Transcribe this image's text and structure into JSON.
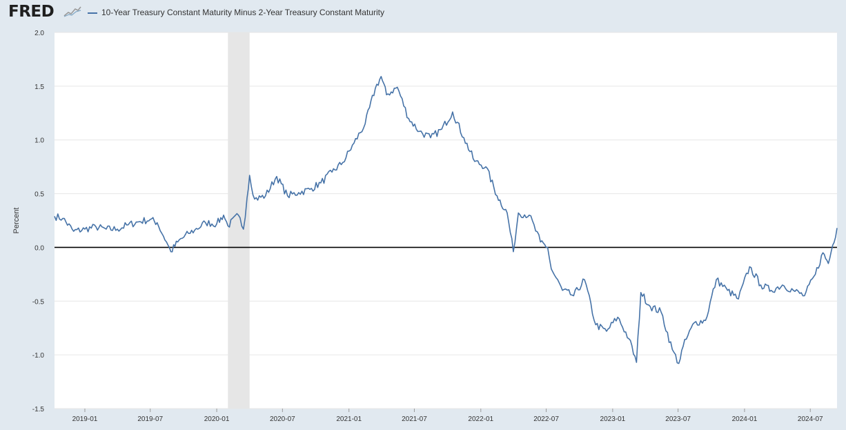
{
  "brand": {
    "logo_text": "FRED",
    "logo_mark": "sparkline-chart-icon"
  },
  "legend": {
    "label": "10-Year Treasury Constant Maturity Minus 2-Year Treasury Constant Maturity",
    "color": "#4572a7"
  },
  "colors": {
    "line": "#4572a7",
    "background": "#e1e9f0",
    "plot": "#ffffff",
    "recession": "#e6e6e6",
    "zero_line": "#000000",
    "grid": "#e6e6e6"
  },
  "chart_data": {
    "type": "line",
    "title": "",
    "xlabel": "",
    "ylabel": "Percent",
    "x_range": [
      "2018-10-09",
      "2024-09-13"
    ],
    "ylim": [
      -1.5,
      2.0
    ],
    "y_ticks": [
      2.0,
      1.5,
      1.0,
      0.5,
      0.0,
      -0.5,
      -1.0,
      -1.5
    ],
    "y_tick_labels": [
      "2.0",
      "1.5",
      "1.0",
      "0.5",
      "0.0",
      "-0.5",
      "-1.0",
      "-1.5"
    ],
    "x_ticks": [
      "2019-01-01",
      "2019-07-01",
      "2020-01-01",
      "2020-07-01",
      "2021-01-01",
      "2021-07-01",
      "2022-01-01",
      "2022-07-01",
      "2023-01-01",
      "2023-07-01",
      "2024-01-01",
      "2024-07-01"
    ],
    "x_tick_labels": [
      "2019-01",
      "2019-07",
      "2020-01",
      "2020-07",
      "2021-01",
      "2021-07",
      "2022-01",
      "2022-07",
      "2023-01",
      "2023-07",
      "2024-01",
      "2024-07"
    ],
    "grid": true,
    "zero_line": true,
    "recession_shading": [
      [
        "2020-02-01",
        "2020-04-01"
      ]
    ],
    "series": [
      {
        "name": "10-Year Treasury Constant Maturity Minus 2-Year Treasury Constant Maturity",
        "points": [
          [
            "2018-10-09",
            0.29
          ],
          [
            "2018-11-01",
            0.27
          ],
          [
            "2018-12-01",
            0.15
          ],
          [
            "2019-01-01",
            0.17
          ],
          [
            "2019-02-01",
            0.19
          ],
          [
            "2019-03-01",
            0.17
          ],
          [
            "2019-04-01",
            0.17
          ],
          [
            "2019-05-01",
            0.21
          ],
          [
            "2019-06-01",
            0.24
          ],
          [
            "2019-07-01",
            0.26
          ],
          [
            "2019-07-20",
            0.23
          ],
          [
            "2019-08-15",
            0.05
          ],
          [
            "2019-08-27",
            -0.04
          ],
          [
            "2019-09-15",
            0.05
          ],
          [
            "2019-10-15",
            0.13
          ],
          [
            "2019-11-01",
            0.16
          ],
          [
            "2019-12-01",
            0.23
          ],
          [
            "2020-01-01",
            0.22
          ],
          [
            "2020-01-20",
            0.3
          ],
          [
            "2020-02-01",
            0.2
          ],
          [
            "2020-03-01",
            0.3
          ],
          [
            "2020-03-15",
            0.17
          ],
          [
            "2020-03-25",
            0.46
          ],
          [
            "2020-04-01",
            0.67
          ],
          [
            "2020-04-15",
            0.45
          ],
          [
            "2020-05-15",
            0.48
          ],
          [
            "2020-06-15",
            0.66
          ],
          [
            "2020-07-15",
            0.48
          ],
          [
            "2020-08-15",
            0.51
          ],
          [
            "2020-09-15",
            0.54
          ],
          [
            "2020-10-15",
            0.6
          ],
          [
            "2020-11-15",
            0.7
          ],
          [
            "2020-12-15",
            0.79
          ],
          [
            "2021-01-15",
            0.97
          ],
          [
            "2021-02-15",
            1.15
          ],
          [
            "2021-03-15",
            1.48
          ],
          [
            "2021-03-31",
            1.59
          ],
          [
            "2021-04-15",
            1.42
          ],
          [
            "2021-05-15",
            1.49
          ],
          [
            "2021-06-15",
            1.2
          ],
          [
            "2021-07-15",
            1.08
          ],
          [
            "2021-08-15",
            1.02
          ],
          [
            "2021-09-15",
            1.1
          ],
          [
            "2021-10-15",
            1.26
          ],
          [
            "2021-11-15",
            1.02
          ],
          [
            "2021-12-15",
            0.8
          ],
          [
            "2022-01-15",
            0.75
          ],
          [
            "2022-02-15",
            0.48
          ],
          [
            "2022-03-15",
            0.32
          ],
          [
            "2022-04-01",
            -0.04
          ],
          [
            "2022-04-15",
            0.32
          ],
          [
            "2022-05-15",
            0.3
          ],
          [
            "2022-06-15",
            0.05
          ],
          [
            "2022-07-05",
            0.0
          ],
          [
            "2022-07-15",
            -0.2
          ],
          [
            "2022-08-15",
            -0.4
          ],
          [
            "2022-09-15",
            -0.45
          ],
          [
            "2022-10-15",
            -0.3
          ],
          [
            "2022-11-15",
            -0.72
          ],
          [
            "2022-12-15",
            -0.78
          ],
          [
            "2023-01-15",
            -0.65
          ],
          [
            "2023-02-15",
            -0.85
          ],
          [
            "2023-03-08",
            -1.07
          ],
          [
            "2023-03-20",
            -0.42
          ],
          [
            "2023-04-15",
            -0.55
          ],
          [
            "2023-05-15",
            -0.6
          ],
          [
            "2023-06-15",
            -0.95
          ],
          [
            "2023-07-03",
            -1.08
          ],
          [
            "2023-07-15",
            -0.92
          ],
          [
            "2023-08-15",
            -0.7
          ],
          [
            "2023-09-15",
            -0.68
          ],
          [
            "2023-10-15",
            -0.3
          ],
          [
            "2023-11-15",
            -0.4
          ],
          [
            "2023-12-15",
            -0.48
          ],
          [
            "2024-01-15",
            -0.18
          ],
          [
            "2024-02-15",
            -0.35
          ],
          [
            "2024-03-15",
            -0.4
          ],
          [
            "2024-04-15",
            -0.35
          ],
          [
            "2024-05-15",
            -0.4
          ],
          [
            "2024-06-15",
            -0.45
          ],
          [
            "2024-07-15",
            -0.25
          ],
          [
            "2024-08-05",
            -0.05
          ],
          [
            "2024-08-20",
            -0.15
          ],
          [
            "2024-09-01",
            0.02
          ],
          [
            "2024-09-13",
            0.18
          ]
        ]
      }
    ]
  }
}
